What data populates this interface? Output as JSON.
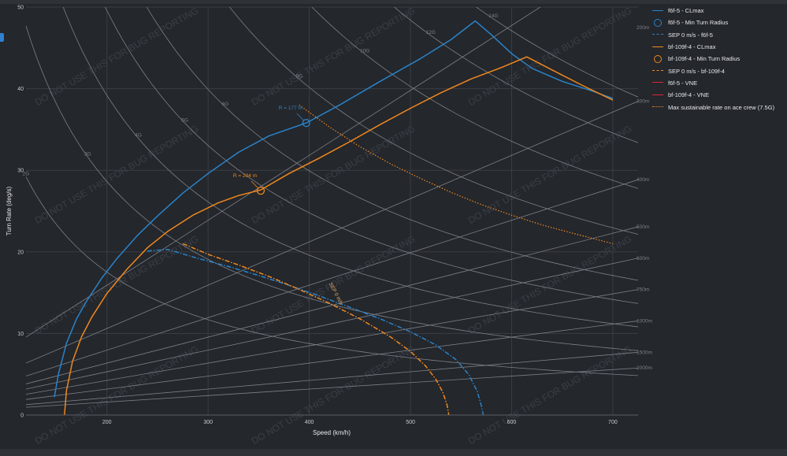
{
  "colors": {
    "background": "#24272c",
    "grid": "#3a3e45",
    "guide": "#7d8087",
    "text": "#c9ccd1",
    "watermark": "#3b3f46",
    "f6f": "#2a83c9",
    "bf109": "#f0881e",
    "vne": "#d8283a"
  },
  "watermark": "DO NOT USE THIS FOR BUG REPORTING",
  "legend": [
    {
      "label": "f6f-5 - CLmax",
      "color": "#2a83c9",
      "style": "solid"
    },
    {
      "label": "f6f-5 - Min Turn Radius",
      "color": "#2a83c9",
      "style": "circle"
    },
    {
      "label": "SEP 0 m/s - f6f-5",
      "color": "#2a83c9",
      "style": "dashdot"
    },
    {
      "label": "bf-109f-4 - CLmax",
      "color": "#f0881e",
      "style": "solid"
    },
    {
      "label": "bf-109f-4 - Min Turn Radius",
      "color": "#f0881e",
      "style": "circle"
    },
    {
      "label": "SEP 0 m/s - bf-109f-4",
      "color": "#f0881e",
      "style": "dashdot"
    },
    {
      "label": "f6f-5 - VNE",
      "color": "#d8283a",
      "style": "solid"
    },
    {
      "label": "bf-109f-4 - VNE",
      "color": "#d8283a",
      "style": "solid"
    },
    {
      "label": "Max sustainable rate on ace crew (7.5G)",
      "color": "#f0881e",
      "style": "dotted"
    }
  ],
  "chart_data": {
    "type": "line",
    "xlabel": "Speed (km/h)",
    "ylabel": "Turn Rate (deg/s)",
    "xlim": [
      120,
      725
    ],
    "ylim": [
      0,
      50
    ],
    "xticks": [
      200,
      300,
      400,
      500,
      600,
      700
    ],
    "yticks": [
      0,
      10,
      20,
      30,
      40,
      50
    ],
    "grid": true,
    "legend_position": "right",
    "load_factor_lines": [
      {
        "label": "2G",
        "g": 2
      },
      {
        "label": "3G",
        "g": 3
      },
      {
        "label": "4G",
        "g": 4
      },
      {
        "label": "5G",
        "g": 5
      },
      {
        "label": "6G",
        "g": 6
      },
      {
        "label": "8G",
        "g": 8
      },
      {
        "label": "10G",
        "g": 10
      },
      {
        "label": "12G",
        "g": 12
      },
      {
        "label": "14G",
        "g": 14
      }
    ],
    "radius_lines": [
      {
        "label": "200m",
        "r": 200
      },
      {
        "label": "300m",
        "r": 300
      },
      {
        "label": "400m",
        "r": 400
      },
      {
        "label": "500m",
        "r": 500
      },
      {
        "label": "600m",
        "r": 600
      },
      {
        "label": "750m",
        "r": 750
      },
      {
        "label": "1000m",
        "r": 1000
      },
      {
        "label": "1500m",
        "r": 1500
      },
      {
        "label": "2000m",
        "r": 2000
      }
    ],
    "series": [
      {
        "name": "f6f-5 - CLmax",
        "color": "#2a83c9",
        "style": "solid",
        "x": [
          148,
          152,
          160,
          170,
          180,
          195,
          210,
          230,
          250,
          275,
          300,
          330,
          360,
          397,
          430,
          470,
          510,
          540,
          564,
          580,
          600,
          620,
          650,
          680,
          700
        ],
        "y": [
          2.2,
          5.0,
          8.8,
          11.8,
          14.0,
          16.8,
          19.2,
          22.0,
          24.4,
          27.2,
          29.6,
          32.2,
          34.2,
          35.8,
          38.0,
          40.9,
          43.7,
          46.0,
          48.3,
          46.6,
          44.3,
          42.5,
          40.9,
          39.7,
          38.8
        ]
      },
      {
        "name": "bf-109f-4 - CLmax",
        "color": "#f0881e",
        "style": "solid",
        "x": [
          158,
          160,
          166,
          175,
          185,
          200,
          220,
          240,
          260,
          285,
          310,
          330,
          352,
          380,
          410,
          440,
          470,
          500,
          530,
          560,
          590,
          615,
          640,
          670,
          700
        ],
        "y": [
          0,
          3.0,
          6.6,
          9.6,
          12.0,
          14.9,
          17.9,
          20.5,
          22.5,
          24.5,
          26.0,
          26.9,
          27.6,
          29.6,
          31.5,
          33.5,
          35.6,
          37.6,
          39.5,
          41.2,
          42.6,
          43.9,
          42.3,
          40.4,
          38.6
        ]
      },
      {
        "name": "SEP 0 m/s - f6f-5",
        "color": "#2a83c9",
        "style": "dashdot",
        "x": [
          240,
          260,
          290,
          320,
          350,
          380,
          410,
          440,
          470,
          500,
          525,
          545,
          558,
          566,
          570,
          572
        ],
        "y": [
          20.1,
          20.3,
          19.2,
          18.2,
          17.1,
          15.9,
          14.6,
          13.2,
          11.8,
          10.2,
          8.6,
          6.8,
          4.9,
          2.9,
          1.2,
          0
        ]
      },
      {
        "name": "SEP 0 m/s - bf-109f-4",
        "color": "#f0881e",
        "style": "dashdot",
        "x": [
          275,
          300,
          330,
          360,
          390,
          420,
          450,
          480,
          500,
          515,
          525,
          532,
          536,
          538
        ],
        "y": [
          21.0,
          19.7,
          18.4,
          17.0,
          15.4,
          13.7,
          11.8,
          9.6,
          7.8,
          6.0,
          4.4,
          2.8,
          1.3,
          0
        ]
      },
      {
        "name": "Max sustainable rate on ace crew (7.5G)",
        "color": "#f0881e",
        "style": "dotted",
        "x": [
          390,
          420,
          450,
          480,
          510,
          540,
          570,
          600,
          630,
          660,
          700
        ],
        "y": [
          38.0,
          35.3,
          32.9,
          30.8,
          29.0,
          27.3,
          25.8,
          24.5,
          23.3,
          22.3,
          21.0
        ]
      }
    ],
    "points": [
      {
        "name": "f6f-5 - Min Turn Radius",
        "x": 397,
        "y": 35.8,
        "label": "R = 177 m",
        "color": "#2a83c9"
      },
      {
        "name": "bf-109f-4 - Min Turn Radius",
        "x": 352,
        "y": 27.5,
        "label": "R = 204 m",
        "color": "#f0881e"
      }
    ],
    "annotations": [
      {
        "text": "SEP 0 m/s",
        "x": 425,
        "y": 14.8
      }
    ]
  }
}
